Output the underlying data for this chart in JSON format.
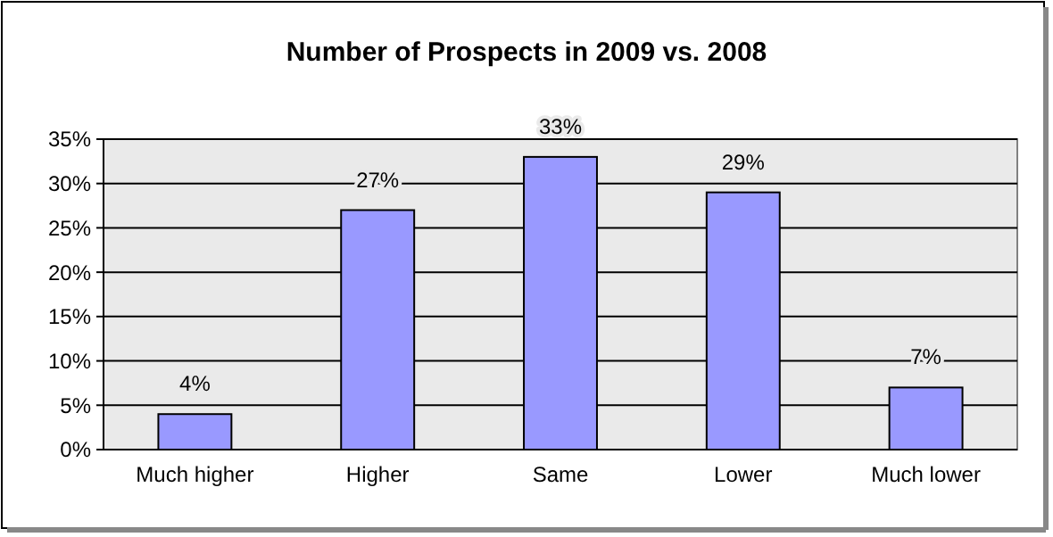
{
  "chart_data": {
    "type": "bar",
    "title": "Number of Prospects in 2009 vs. 2008",
    "categories": [
      "Much higher",
      "Higher",
      "Same",
      "Lower",
      "Much lower"
    ],
    "values": [
      4,
      27,
      33,
      29,
      7
    ],
    "value_labels": [
      "4%",
      "27%",
      "33%",
      "29%",
      "7%"
    ],
    "color": "#9999ff",
    "ylim": [
      0,
      35
    ],
    "yticks": [
      {
        "value": 0,
        "label": "0%"
      },
      {
        "value": 5,
        "label": "5%"
      },
      {
        "value": 10,
        "label": "10%"
      },
      {
        "value": 15,
        "label": "15%"
      },
      {
        "value": 20,
        "label": "20%"
      },
      {
        "value": 25,
        "label": "25%"
      },
      {
        "value": 30,
        "label": "30%"
      },
      {
        "value": 35,
        "label": "35%"
      }
    ],
    "grid": "y"
  }
}
